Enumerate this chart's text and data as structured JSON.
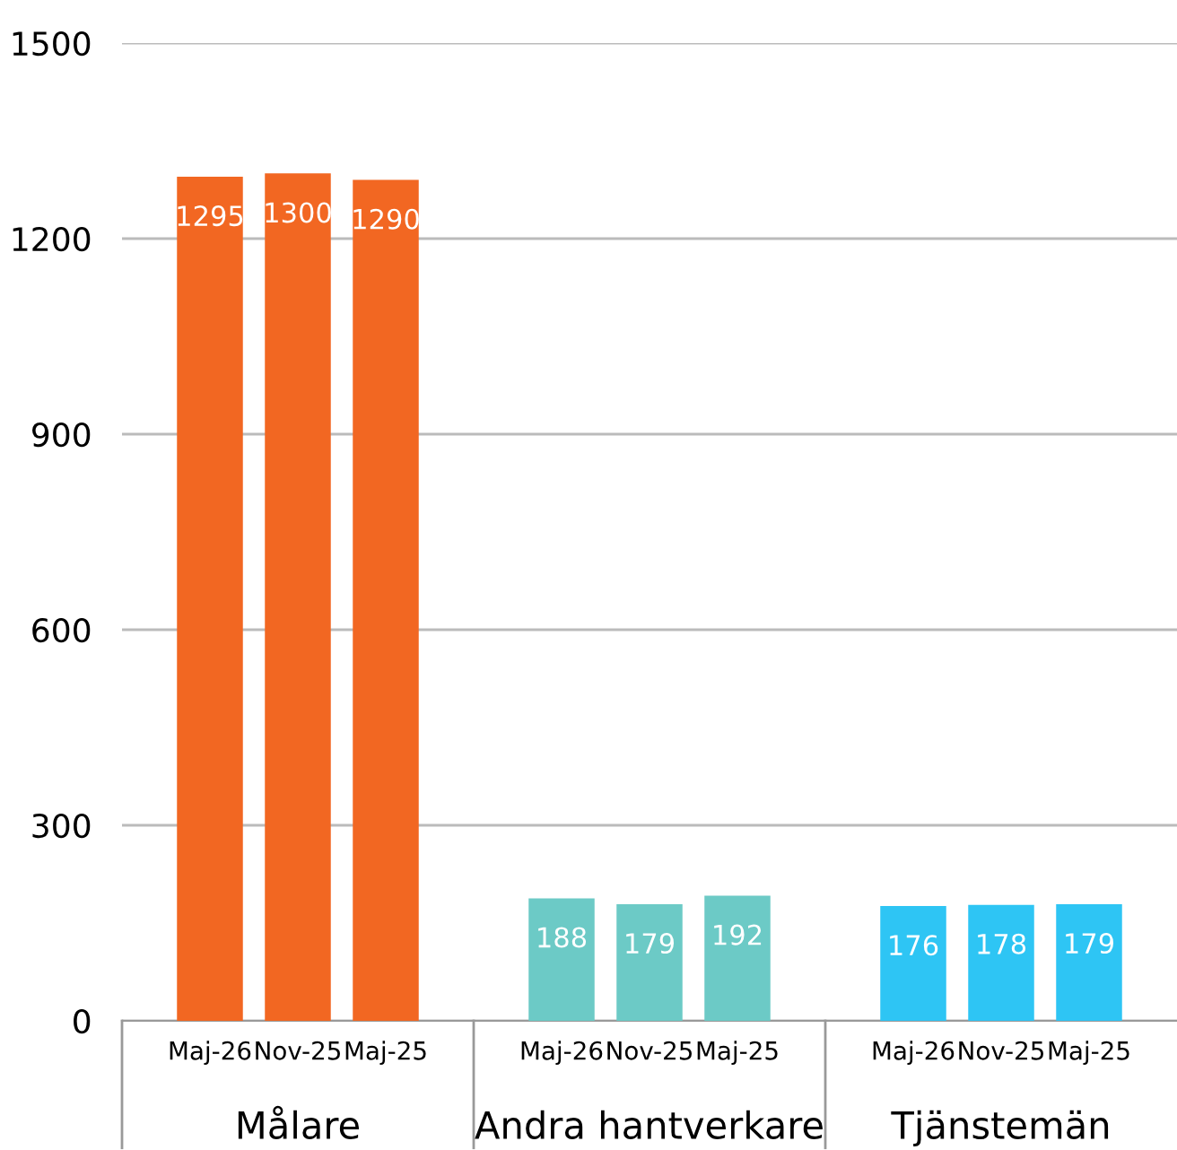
{
  "chart_data": {
    "type": "bar",
    "categories": [
      "Maj-26",
      "Nov-25",
      "Maj-25",
      "Maj-26",
      "Nov-25",
      "Maj-25",
      "Maj-26",
      "Nov-25",
      "Maj-25"
    ],
    "values": [
      1295,
      1300,
      1290,
      188,
      179,
      192,
      176,
      178,
      179
    ],
    "colors": [
      "#f26722",
      "#f26722",
      "#f26722",
      "#6ccac6",
      "#6ccac6",
      "#6ccac6",
      "#2ec5f4",
      "#2ec5f4",
      "#2ec5f4"
    ],
    "annotations": [
      "Målare",
      "Andra hantverkare",
      "Tjänstemän"
    ],
    "ylim": [
      0,
      1500
    ],
    "yticks": [
      0,
      300,
      600,
      900,
      1200,
      1500
    ],
    "grid": "y",
    "data_labels": true
  }
}
